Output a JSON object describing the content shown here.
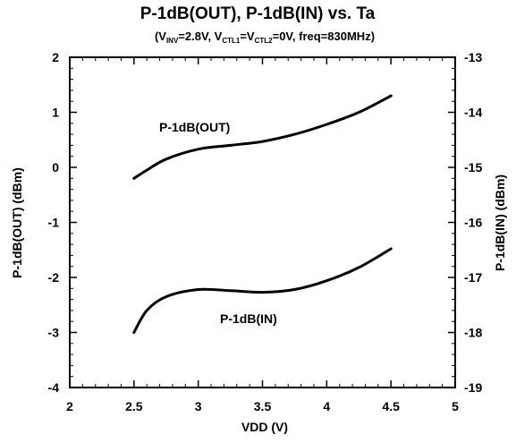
{
  "chart_data": {
    "type": "line",
    "title": "P-1dB(OUT), P-1dB(IN) vs. Ta",
    "subtitle": {
      "p1": "(V",
      "s1": "INV",
      "p2": "=2.8V, V",
      "s2": "CTL1",
      "p3": "=V",
      "s3": "CTL2",
      "p4": "=0V, freq=830MHz)"
    },
    "xlabel": "VDD (V)",
    "ylabel": "P-1dB(OUT) (dBm)",
    "y2label": "P-1dB(IN) (dBm)",
    "xlim": [
      2,
      5
    ],
    "ylim": [
      -4,
      2
    ],
    "y2lim": [
      -19,
      -13
    ],
    "x_ticks": [
      "2",
      "2.5",
      "3",
      "3.5",
      "4",
      "4.5",
      "5"
    ],
    "y_ticks": [
      "2",
      "1",
      "0",
      "-1",
      "-2",
      "-3",
      "-4"
    ],
    "y2_ticks": [
      "-13",
      "-14",
      "-15",
      "-16",
      "-17",
      "-18",
      "-19"
    ],
    "grid": false,
    "series": [
      {
        "name": "P-1dB(OUT)",
        "axis": "left",
        "x": [
          2.5,
          2.6,
          2.75,
          3.0,
          3.25,
          3.5,
          3.75,
          4.0,
          4.25,
          4.5
        ],
        "y": [
          -0.2,
          -0.05,
          0.15,
          0.33,
          0.4,
          0.47,
          0.6,
          0.78,
          1.0,
          1.3
        ]
      },
      {
        "name": "P-1dB(IN)",
        "axis": "right",
        "x": [
          2.5,
          2.6,
          2.75,
          3.0,
          3.25,
          3.5,
          3.75,
          4.0,
          4.25,
          4.5
        ],
        "y": [
          -18.0,
          -17.6,
          -17.35,
          -17.22,
          -17.24,
          -17.27,
          -17.22,
          -17.06,
          -16.82,
          -16.48
        ]
      }
    ]
  }
}
